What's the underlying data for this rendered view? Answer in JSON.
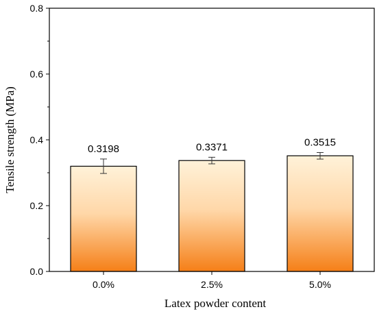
{
  "chart_data": {
    "type": "bar",
    "categories": [
      "0.0%",
      "2.5%",
      "5.0%"
    ],
    "values": [
      0.3198,
      0.3371,
      0.3515
    ],
    "errors": [
      0.022,
      0.01,
      0.01
    ],
    "data_labels": [
      "0.3198",
      "0.3371",
      "0.3515"
    ],
    "title": "",
    "xlabel": "Latex powder content",
    "ylabel": "Tensile strength (MPa)",
    "ylim": [
      0.0,
      0.8
    ],
    "yticks": [
      "0.0",
      "0.2",
      "0.4",
      "0.6",
      "0.8"
    ],
    "grid": false,
    "legend": "none",
    "colors": {
      "bar_top": "#FFF2D9",
      "bar_bottom": "#F57F17",
      "bar_edge": "#000000",
      "axis": "#000000"
    }
  }
}
